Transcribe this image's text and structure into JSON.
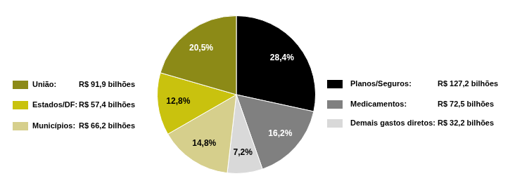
{
  "chart_data": {
    "type": "pie",
    "categories": [
      "Planos/Seguros:",
      "Medicamentos:",
      "Demais gastos diretos:",
      "Municípios:",
      "Estados/DF:",
      "União:"
    ],
    "values": [
      28.4,
      16.2,
      7.2,
      14.8,
      12.8,
      20.5
    ],
    "value_labels": [
      "28,4%",
      "16,2%",
      "7,2%",
      "14,8%",
      "12,8%",
      "20,5%"
    ],
    "amount_labels": [
      "R$ 127,2 bilhões",
      "R$ 72,5 bilhões",
      "R$ 32,2 bilhões",
      "R$ 66,2 bilhões",
      "R$ 57,4 bilhões",
      "R$ 91,9 bilhões"
    ],
    "colors": [
      "#000000",
      "#808080",
      "#d9d9d9",
      "#d6cf8c",
      "#c9c20e",
      "#8c8a17"
    ],
    "data_labels": true
  }
}
